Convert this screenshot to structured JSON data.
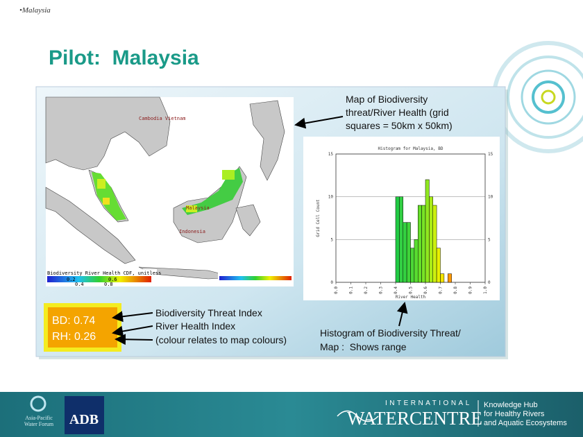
{
  "header": {
    "section": "•Malaysia",
    "title": "Pilot:  Malaysia"
  },
  "map": {
    "labels": [
      "Cambodia Vietnam",
      "Malaysia",
      "Indonesia"
    ],
    "legend_title": "Biodiversity River Health CDF, unitless",
    "legend_ticks": [
      "0.2",
      "0.6",
      "0.4",
      "0.8"
    ]
  },
  "annotations": {
    "map_note": [
      "Map of Biodiversity",
      "threat/River Health (grid",
      "squares = 50km x 50km)"
    ],
    "index_notes": [
      "Biodiversity Threat Index",
      "River Health Index",
      "(colour relates to map colours)"
    ],
    "histogram_note": [
      "Histogram of Biodiversity Threat/",
      "Map :  Shows range"
    ]
  },
  "index_box": [
    "BD: 0.74",
    "RH: 0.26"
  ],
  "histogram": {
    "type": "histogram",
    "title": "Histogram for Malaysia, BD",
    "x_label": "River Health",
    "y_label": "Grid Cell Count",
    "bins": [
      0.4,
      0.425,
      0.45,
      0.475,
      0.5,
      0.525,
      0.55,
      0.575,
      0.6,
      0.625,
      0.65,
      0.675,
      0.7,
      0.725,
      0.75,
      0.775
    ],
    "counts": [
      10,
      10,
      7,
      7,
      4,
      5,
      9,
      9,
      12,
      10,
      9,
      4,
      1,
      0,
      1
    ],
    "colors": [
      "#22cc44",
      "#33d044",
      "#33d040",
      "#40d43a",
      "#4cd836",
      "#58dc30",
      "#66e02a",
      "#78e426",
      "#90e820",
      "#aaec18",
      "#ccf010",
      "#e8f000",
      "#f4e400",
      "#f8c800",
      "#ff9900"
    ],
    "xlim": [
      0,
      1
    ],
    "ylim": [
      0,
      15
    ],
    "xticks": [
      {
        "value": 0,
        "label": "0.0"
      },
      0.1,
      0.2,
      0.3,
      0.4,
      0.5,
      0.6,
      0.7,
      0.8,
      0.9,
      {
        "value": 1,
        "label": "1.0"
      }
    ],
    "yticks": [
      0,
      5,
      10,
      15
    ]
  },
  "footer": {
    "apwf": [
      "Asia-Pacific",
      "Water Forum"
    ],
    "adb": "ADB",
    "iwc_top": "INTERNATIONAL",
    "iwc_name": "WATERCENTRE",
    "hub": [
      "Knowledge Hub",
      "for Healthy Rivers",
      "and Aquatic Ecosystems"
    ]
  }
}
